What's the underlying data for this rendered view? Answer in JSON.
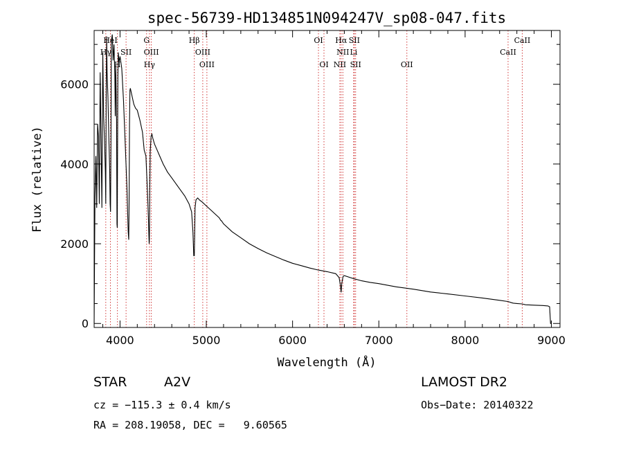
{
  "chart_data": {
    "type": "line",
    "title": "spec-56739-HD134851N094247V_sp08-047.fits",
    "xlabel": "Wavelength (Å)",
    "ylabel": "Flux (relative)",
    "xlim": [
      3700,
      9100
    ],
    "ylim": [
      -100,
      7350
    ],
    "x_ticks": [
      4000,
      5000,
      6000,
      7000,
      8000,
      9000
    ],
    "y_ticks": [
      0,
      2000,
      4000,
      6000
    ],
    "grid": false,
    "series": [
      {
        "x": [
          3700,
          3710,
          3720,
          3730,
          3740,
          3750,
          3760,
          3770,
          3780,
          3790,
          3800,
          3810,
          3820,
          3830,
          3835,
          3840,
          3845,
          3850,
          3860,
          3870,
          3880,
          3885,
          3890,
          3895,
          3900,
          3910,
          3920,
          3930,
          3940,
          3945,
          3950,
          3960,
          3965,
          3968,
          3970,
          3975,
          3980,
          3990,
          4000,
          4020,
          4040,
          4060,
          4080,
          4095,
          4101,
          4105,
          4110,
          4115,
          4120,
          4140,
          4160,
          4180,
          4200,
          4230,
          4260,
          4280,
          4300,
          4320,
          4330,
          4335,
          4338,
          4340,
          4342,
          4345,
          4350,
          4360,
          4370,
          4380,
          4400,
          4430,
          4460,
          4480,
          4500,
          4550,
          4600,
          4650,
          4700,
          4750,
          4800,
          4830,
          4845,
          4855,
          4861,
          4865,
          4870,
          4880,
          4900,
          4920,
          4950,
          5000,
          5050,
          5100,
          5150,
          5170,
          5175,
          5200,
          5300,
          5400,
          5500,
          5600,
          5700,
          5800,
          5900,
          6000,
          6100,
          6200,
          6300,
          6400,
          6500,
          6540,
          6555,
          6563,
          6570,
          6585,
          6600,
          6700,
          6800,
          6900,
          7000,
          7200,
          7400,
          7600,
          7800,
          8000,
          8200,
          8400,
          8500,
          8540,
          8560,
          8600,
          8660,
          8700,
          8800,
          8900,
          8960,
          8980,
          8990,
          9000
        ],
        "y": [
          0,
          3200,
          4200,
          2900,
          5000,
          4700,
          3000,
          6300,
          4600,
          2900,
          6800,
          5200,
          4600,
          3800,
          3000,
          5600,
          7200,
          6300,
          5700,
          4700,
          3900,
          3000,
          2800,
          4500,
          7100,
          7250,
          6600,
          7000,
          6200,
          5200,
          6500,
          5100,
          2500,
          2400,
          3800,
          6200,
          6800,
          6550,
          6700,
          6400,
          5600,
          4500,
          3400,
          2300,
          2100,
          3000,
          5000,
          5850,
          5900,
          5700,
          5500,
          5400,
          5350,
          5100,
          4800,
          4350,
          4200,
          3200,
          2600,
          2200,
          2000,
          2100,
          2400,
          3400,
          4300,
          4700,
          4750,
          4650,
          4500,
          4350,
          4200,
          4100,
          4000,
          3800,
          3650,
          3500,
          3350,
          3200,
          3000,
          2800,
          2300,
          1700,
          1700,
          2200,
          2900,
          3100,
          3150,
          3100,
          3050,
          2950,
          2850,
          2750,
          2650,
          2580,
          2580,
          2500,
          2300,
          2150,
          2000,
          1880,
          1770,
          1680,
          1590,
          1510,
          1450,
          1390,
          1340,
          1300,
          1250,
          1150,
          950,
          780,
          1000,
          1180,
          1200,
          1130,
          1070,
          1030,
          1000,
          920,
          860,
          790,
          740,
          690,
          640,
          580,
          550,
          520,
          510,
          500,
          490,
          470,
          460,
          450,
          440,
          420,
          0,
          0
        ]
      }
    ],
    "spectral_lines": [
      {
        "label": "HeI",
        "x": 3889,
        "row": 0
      },
      {
        "label": "Hγ",
        "x": 3835,
        "row": 1
      },
      {
        "label": "SII",
        "x": 4070,
        "row": 1
      },
      {
        "label": "H",
        "x": 3970,
        "row": 2
      },
      {
        "label": "G",
        "x": 4308,
        "row": 0
      },
      {
        "label": "OIII",
        "x": 4363,
        "row": 1
      },
      {
        "label": "Hγ",
        "x": 4341,
        "row": 2
      },
      {
        "label": "Hβ",
        "x": 4861,
        "row": 0
      },
      {
        "label": "OIII",
        "x": 4959,
        "row": 1
      },
      {
        "label": "OIII",
        "x": 5007,
        "row": 2
      },
      {
        "label": "OI",
        "x": 6300,
        "row": 0
      },
      {
        "label": "OI",
        "x": 6364,
        "row": 2
      },
      {
        "label": "Hα",
        "x": 6563,
        "row": 0
      },
      {
        "label": "SII",
        "x": 6716,
        "row": 0
      },
      {
        "label": "NII",
        "x": 6583,
        "row": 1
      },
      {
        "label": "Li",
        "x": 6708,
        "row": 1
      },
      {
        "label": "NII",
        "x": 6548,
        "row": 2
      },
      {
        "label": "SII",
        "x": 6731,
        "row": 2
      },
      {
        "label": "OII",
        "x": 7325,
        "row": 2
      },
      {
        "label": "CaII",
        "x": 8662,
        "row": 0
      },
      {
        "label": "CaII",
        "x": 8498,
        "row": 1
      }
    ]
  },
  "footer": {
    "object_type": "STAR",
    "spectral_class": "A2V",
    "survey": "LAMOST DR2",
    "cz": "cz = −115.3 ± 0.4 km/s",
    "obs_date": "Obs−Date: 20140322",
    "coords": "RA = 208.19058, DEC =   9.60565"
  }
}
